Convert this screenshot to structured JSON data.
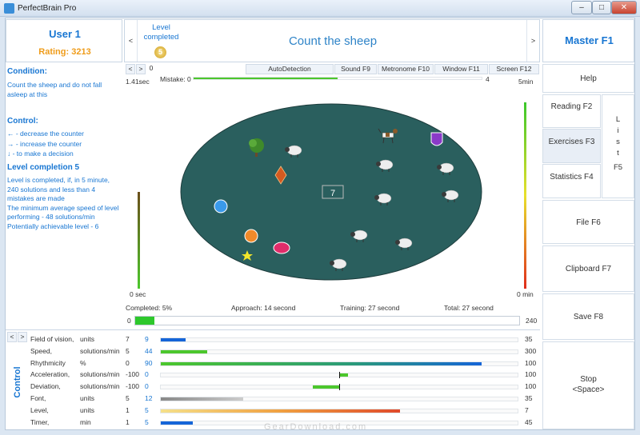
{
  "window": {
    "title": "PerfectBrain Pro",
    "btn_min": "–",
    "btn_max": "□",
    "btn_close": "✕"
  },
  "user": {
    "name": "User 1",
    "rating": "Rating: 3213"
  },
  "header": {
    "prev": "<",
    "next": ">",
    "status": "Level completed",
    "medal": "5",
    "exercise": "Count the sheep",
    "master": "Master  F1"
  },
  "toolbar": {
    "nav_prev": "<",
    "nav_next": ">",
    "nav_val": "0",
    "tabs": [
      "AutoDetection",
      "Sound F9",
      "Metronome F10",
      "Window F11",
      "Screen F12"
    ]
  },
  "condition": {
    "heading": "Condition:",
    "text": "Count the sheep and do not fall asleep at this",
    "control_heading": "Control:",
    "controls": [
      "← - decrease the counter",
      "→ - increase the counter",
      "↓ - to make a decision"
    ],
    "level_heading": "Level completion 5",
    "level_text": [
      "  Level is completed, if, in 5 minute, 240 solutions and less than 4 mistakes are made",
      "  The minimum average speed of level performing - 48 solutions/min",
      "  Potentially achievable level - 6"
    ]
  },
  "field": {
    "left_top": "1.41sec",
    "left_bottom": "0 sec",
    "right_top": "5min",
    "right_bottom": "0 min",
    "mistake_label": "Mistake: 0",
    "mistake_max": "4",
    "mistake_fraction": 0.01,
    "counter": "7",
    "left_meter_fraction": 0.5,
    "right_meter_fraction": 0.96
  },
  "stats": {
    "completed": "Completed: 5%",
    "approach": "Approach: 14 second",
    "training": "Training: 27 second",
    "total": "Total: 27 second",
    "progress_min": "0",
    "progress_max": "240",
    "progress_fraction": 0.05
  },
  "right_menu": {
    "help": "Help",
    "reading": "Reading F2",
    "exercises": "Exercises F3",
    "statistics": "Statistics F4",
    "list_letters": [
      "L",
      "i",
      "s",
      "t"
    ],
    "list_key": "F5",
    "file": "File F6",
    "clipboard": "Clipboard F7",
    "save": "Save F8",
    "stop": "Stop",
    "stop_key": "<Space>"
  },
  "control_panel": {
    "side_label": "Control",
    "prev": "<",
    "next": ">",
    "rows": [
      {
        "name": "Field of vision,",
        "unit": "units",
        "min": "7",
        "val": "9",
        "max": "35",
        "from": 0.0,
        "to": 0.07,
        "color": "#1565d8",
        "marker": null
      },
      {
        "name": "Speed,",
        "unit": "solutions/min",
        "min": "5",
        "val": "44",
        "max": "300",
        "from": 0.0,
        "to": 0.13,
        "color": "#4cc72c",
        "marker": null
      },
      {
        "name": "Rhythmicity",
        "unit": "%",
        "min": "0",
        "val": "90",
        "max": "100",
        "from": 0.0,
        "to": 0.9,
        "color": "gradient-rhythm",
        "marker": null
      },
      {
        "name": "Acceleration,",
        "unit": "solutions/min",
        "min": "-100",
        "val": "0",
        "max": "100",
        "from": 0.5,
        "to": 0.525,
        "color": "#4cc72c",
        "marker": 0.5
      },
      {
        "name": "Deviation,",
        "unit": "solutions/min",
        "min": "-100",
        "val": "0",
        "max": "100",
        "from": 0.425,
        "to": 0.5,
        "color": "#4cc72c",
        "marker": 0.5
      },
      {
        "name": "Font,",
        "unit": "units",
        "min": "5",
        "val": "12",
        "max": "35",
        "from": 0.0,
        "to": 0.23,
        "color": "gradient-font",
        "marker": null
      },
      {
        "name": "Level,",
        "unit": "units",
        "min": "1",
        "val": "5",
        "max": "7",
        "from": 0.0,
        "to": 0.67,
        "color": "gradient-level",
        "marker": null
      },
      {
        "name": "Timer,",
        "unit": "min",
        "min": "1",
        "val": "5",
        "max": "45",
        "from": 0.0,
        "to": 0.09,
        "color": "#1565d8",
        "marker": null
      }
    ]
  },
  "watermark": "GearDownload.com"
}
